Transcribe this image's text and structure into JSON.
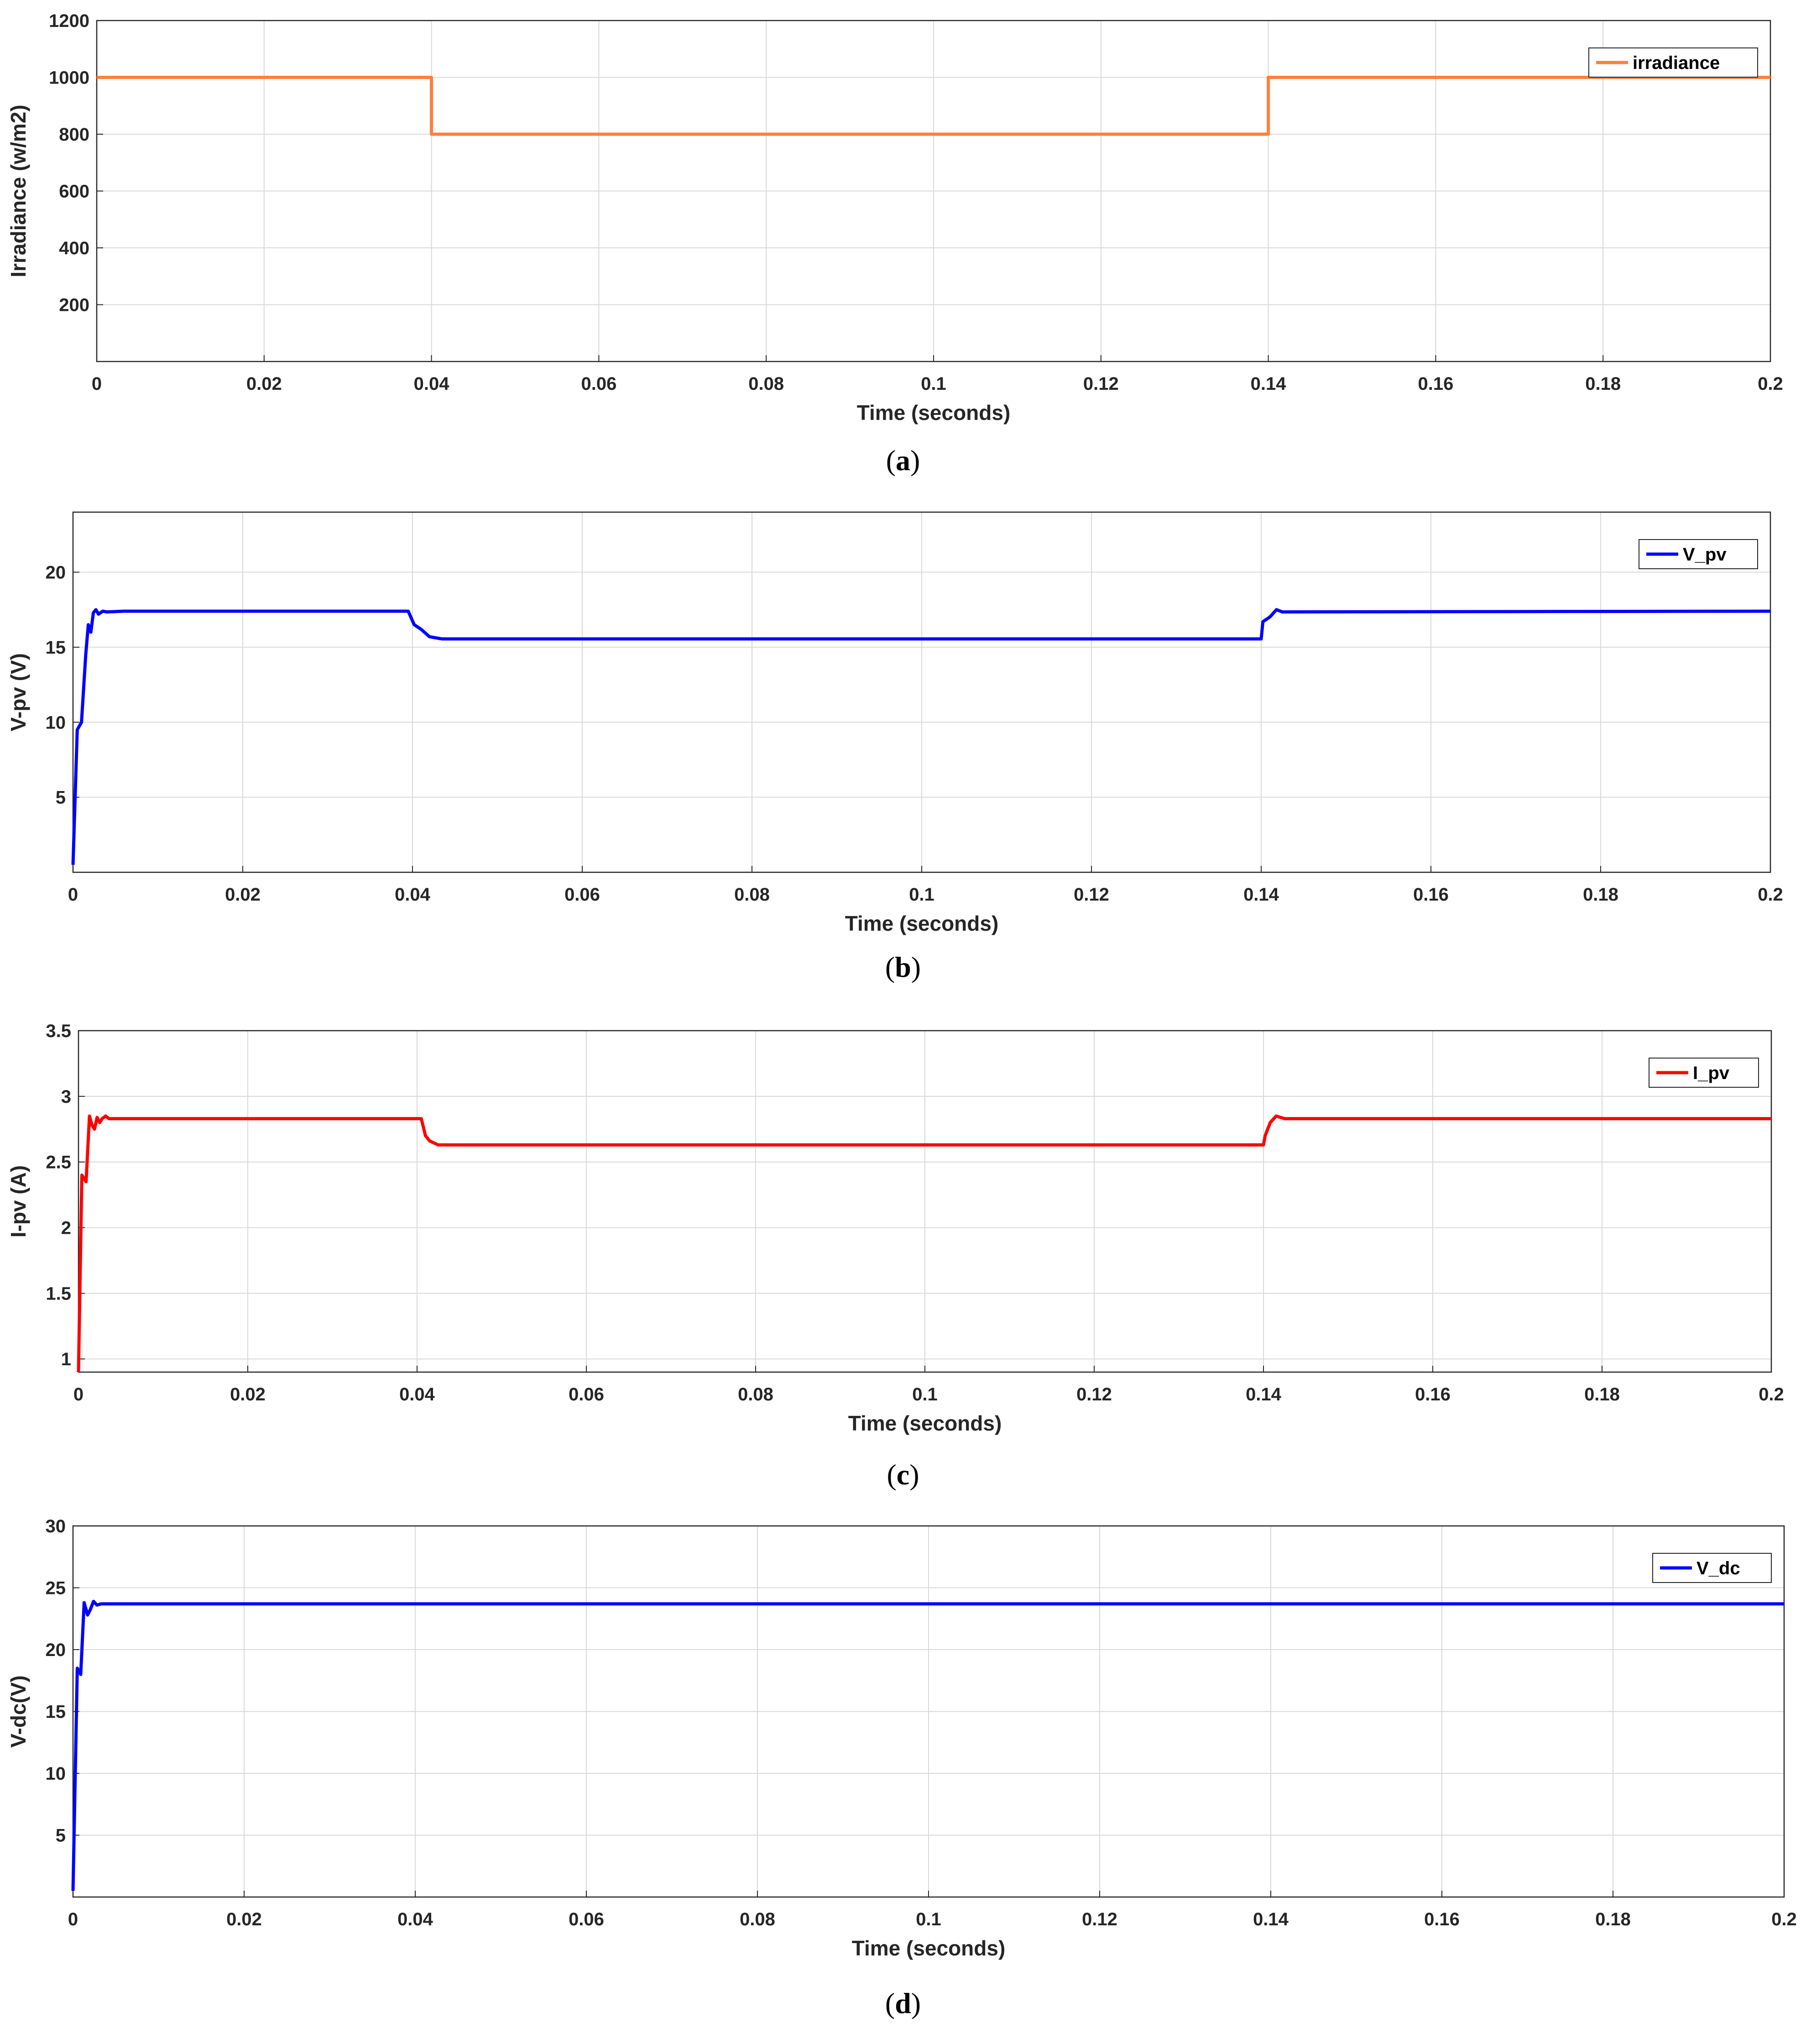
{
  "chart_data": [
    {
      "type": "line",
      "caption": "a",
      "xlabel": "Time (seconds)",
      "ylabel": "Irradiance (w/m2)",
      "xlim": [
        0,
        0.2
      ],
      "ylim": [
        0,
        1200
      ],
      "xticks": [
        "0",
        "0.02",
        "0.04",
        "0.06",
        "0.08",
        "0.1",
        "0.12",
        "0.14",
        "0.16",
        "0.18",
        "0.2"
      ],
      "yticks": [
        "200",
        "400",
        "600",
        "800",
        "1000",
        "1200"
      ],
      "grid": true,
      "legend_position": "top-right",
      "series": [
        {
          "name": "irradiance",
          "color": "#ff7f3f",
          "x": [
            0,
            0.04,
            0.04,
            0.14,
            0.14,
            0.2
          ],
          "y": [
            1000,
            1000,
            800,
            800,
            1000,
            1000
          ]
        }
      ]
    },
    {
      "type": "line",
      "caption": "b",
      "xlabel": "Time (seconds)",
      "ylabel": "V-pv (V)",
      "xlim": [
        0,
        0.2
      ],
      "ylim": [
        0,
        24
      ],
      "xticks": [
        "0",
        "0.02",
        "0.04",
        "0.06",
        "0.08",
        "0.1",
        "0.12",
        "0.14",
        "0.16",
        "0.18",
        "0.2"
      ],
      "yticks": [
        "5",
        "10",
        "15",
        "20"
      ],
      "grid": true,
      "legend_position": "top-right",
      "series": [
        {
          "name": "V_pv",
          "color": "#0000ff",
          "x": [
            0,
            0.0005,
            0.001,
            0.0015,
            0.0018,
            0.0021,
            0.0024,
            0.0027,
            0.003,
            0.0035,
            0.004,
            0.006,
            0.0395,
            0.0402,
            0.041,
            0.042,
            0.0435,
            0.045,
            0.14,
            0.1402,
            0.141,
            0.1418,
            0.1425,
            0.2
          ],
          "y": [
            0.5,
            9.5,
            10,
            14.5,
            16.5,
            16,
            17.3,
            17.5,
            17.2,
            17.4,
            17.35,
            17.4,
            17.4,
            16.5,
            16.2,
            15.7,
            15.55,
            15.55,
            15.55,
            16.7,
            17,
            17.5,
            17.35,
            17.4
          ]
        }
      ]
    },
    {
      "type": "line",
      "caption": "c",
      "xlabel": "Time (seconds)",
      "ylabel": "I-pv (A)",
      "xlim": [
        0,
        0.2
      ],
      "ylim": [
        0.9,
        3.5
      ],
      "xticks": [
        "0",
        "0.02",
        "0.04",
        "0.06",
        "0.08",
        "0.1",
        "0.12",
        "0.14",
        "0.16",
        "0.18",
        "0.2"
      ],
      "yticks": [
        "1",
        "1.5",
        "2",
        "2.5",
        "3",
        "3.5"
      ],
      "grid": true,
      "legend_position": "top-right",
      "series": [
        {
          "name": "I_pv",
          "color": "#ff0000",
          "x": [
            0,
            0.0004,
            0.0009,
            0.0013,
            0.0016,
            0.0019,
            0.0022,
            0.0025,
            0.0028,
            0.0032,
            0.0036,
            0.005,
            0.0405,
            0.041,
            0.0415,
            0.0425,
            0.044,
            0.14,
            0.1402,
            0.1408,
            0.1415,
            0.1425,
            0.2
          ],
          "y": [
            0.9,
            2.4,
            2.35,
            2.85,
            2.78,
            2.75,
            2.84,
            2.8,
            2.83,
            2.85,
            2.83,
            2.83,
            2.83,
            2.7,
            2.66,
            2.63,
            2.63,
            2.63,
            2.7,
            2.8,
            2.85,
            2.83,
            2.83
          ]
        }
      ]
    },
    {
      "type": "line",
      "caption": "d",
      "xlabel": "Time (seconds)",
      "ylabel": "V-dc(V)",
      "xlim": [
        0,
        0.2
      ],
      "ylim": [
        0,
        30
      ],
      "xticks": [
        "0",
        "0.02",
        "0.04",
        "0.06",
        "0.08",
        "0.1",
        "0.12",
        "0.14",
        "0.16",
        "0.18",
        "0.2"
      ],
      "yticks": [
        "5",
        "10",
        "15",
        "20",
        "25",
        "30"
      ],
      "grid": true,
      "legend_position": "top-right",
      "series": [
        {
          "name": "V_dc",
          "color": "#0000ff",
          "x": [
            0,
            0.0005,
            0.0009,
            0.0013,
            0.0017,
            0.002,
            0.0024,
            0.0028,
            0.0033,
            0.004,
            0.2
          ],
          "y": [
            0.5,
            18.5,
            18,
            23.8,
            22.8,
            23.2,
            23.9,
            23.6,
            23.7,
            23.7,
            23.7
          ]
        }
      ]
    }
  ]
}
